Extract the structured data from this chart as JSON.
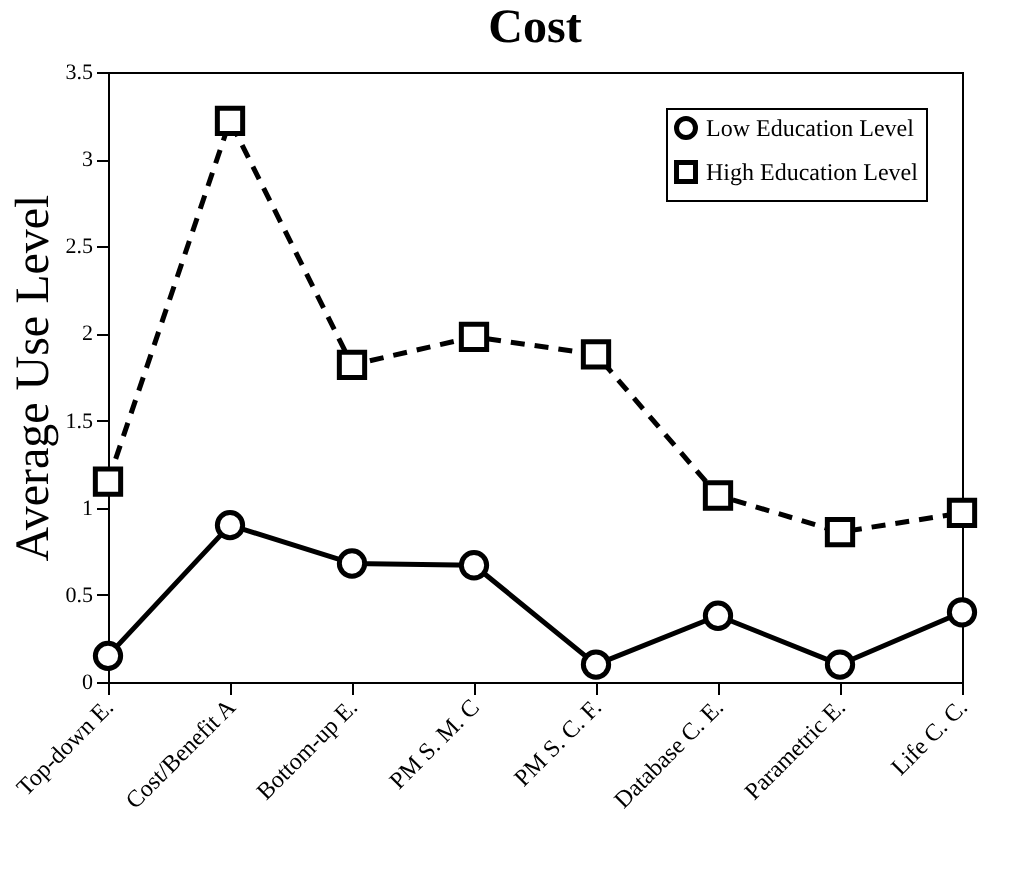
{
  "chart_data": {
    "type": "line",
    "title": "Cost",
    "ylabel": "Average Use Level",
    "categories": [
      "Top-down E.",
      "Cost/Benefit A",
      "Bottom-up E.",
      "PM S. M. C",
      "PM S. C. F.",
      "Database C. E.",
      "Parametric E.",
      "Life C. C."
    ],
    "series": [
      {
        "name": "Low Education Level",
        "color": "#000000",
        "marker": "circle",
        "line_style": "solid",
        "values": [
          0.15,
          0.9,
          0.68,
          0.67,
          0.1,
          0.38,
          0.1,
          0.4
        ]
      },
      {
        "name": "High Education Level",
        "color": "#000000",
        "marker": "square",
        "line_style": "dashed",
        "values": [
          1.15,
          3.22,
          1.82,
          1.98,
          1.88,
          1.07,
          0.86,
          0.97
        ]
      }
    ],
    "ylim": [
      0,
      3.5
    ],
    "yticks": [
      0,
      0.5,
      1,
      1.5,
      2,
      2.5,
      3,
      3.5
    ],
    "grid": false,
    "legend": "top right"
  }
}
